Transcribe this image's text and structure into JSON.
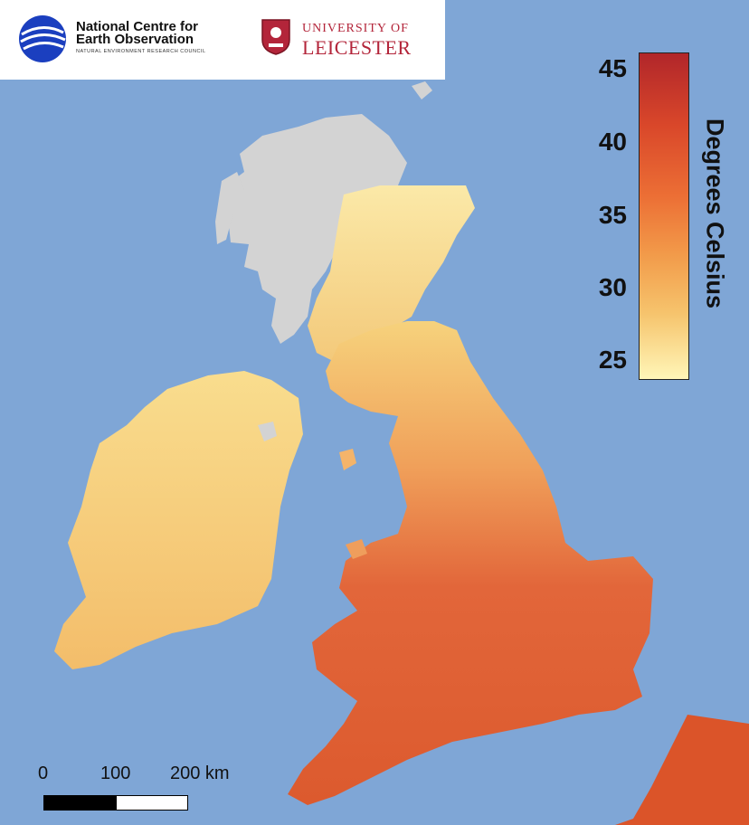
{
  "logos": {
    "nceo_line1": "National Centre for",
    "nceo_line2": "Earth Observation",
    "nceo_sub": "NATURAL ENVIRONMENT RESEARCH COUNCIL",
    "uol_line1": "UNIVERSITY OF",
    "uol_line2": "LEICESTER"
  },
  "legend": {
    "title": "Degrees Celsius",
    "ticks": [
      "45",
      "40",
      "35",
      "30",
      "25"
    ],
    "range": [
      24,
      46
    ],
    "colors": [
      "#fff6b8",
      "#f6c46d",
      "#f29b4a",
      "#ec6f35",
      "#d9472a",
      "#b1262a"
    ]
  },
  "scale": {
    "labels": [
      "0",
      "100",
      "200 km"
    ]
  },
  "colors": {
    "sea": "#7fa6d6",
    "no_data": "#d3d3d3",
    "land_cool": "#f8dc8a",
    "land_warm": "#d94a26"
  }
}
